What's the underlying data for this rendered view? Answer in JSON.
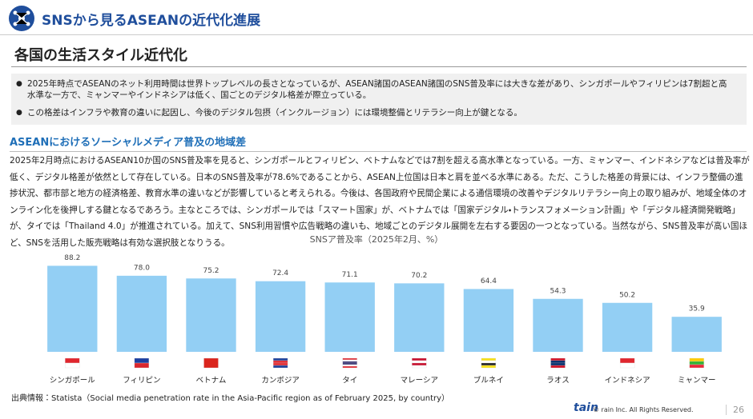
{
  "header": {
    "title": "SNSから見るASEANの近代化進展"
  },
  "section": {
    "title": "各国の生活スタイル近代化"
  },
  "bullets": [
    "2025年時点でASEANのネット利用時間は世界トップレベルの長さとなっているが、ASEAN諸国のASEAN諸国のSNS普及率には大きな差があり、シンガポールやフィリピンは7割超と高水準な一方で、ミャンマーやインドネシアは低く、国ごとのデジタル格差が際立っている。",
    "この格差はインフラや教育の違いに起因し、今後のデジタル包摂（インクルージョン）には環境整備とリテラシー向上が鍵となる。"
  ],
  "subheading": "ASEANにおけるソーシャルメディア普及の地域差",
  "paragraph": "2025年2月時点におけるASEAN10か国のSNS普及率を見ると、シンガポールとフィリピン、ベトナムなどでは7割を超える高水準となっている。一方、ミャンマー、インドネシアなどは普及率が低く、デジタル格差が依然として存在している。日本のSNS普及率が78.6%であることから、ASEAN上位国は日本と肩を並べる水準にある。ただ、こうした格差の背景には、インフラ整備の進捗状況、都市部と地方の経済格差、教育水準の違いなどが影響していると考えられる。今後は、各国政府や民間企業による通信環境の改善やデジタルリテラシー向上の取り組みが、地域全体のオンライン化を後押しする鍵となるであろう。主なところでは、シンガポールでは「スマート国家」が、ベトナムでは「国家デジタル・トランスフォメーション計画」や「デジタル経済開発戦略」が、タイでは「Thailand 4.0」が推進されている。加えて、SNS利用習慣や広告戦略の違いも、地域ごとのデジタル展開を左右する要因の一つとなっている。当然ながら、SNS普及率が高い国ほど、SNSを活用した販売戦略は有効な選択肢となりうる。",
  "chart_data": {
    "type": "bar",
    "title": "SNSア普及率（2025年2月、%）",
    "categories": [
      "シンガポール",
      "フィリピン",
      "ベトナム",
      "カンボジア",
      "タイ",
      "マレーシア",
      "ブルネイ",
      "ラオス",
      "インドネシア",
      "ミャンマー"
    ],
    "values": [
      88.2,
      78.0,
      75.2,
      72.4,
      71.1,
      70.2,
      64.4,
      54.3,
      50.2,
      35.9
    ],
    "value_labels": [
      "88.2",
      "78.0",
      "75.2",
      "72.4",
      "71.1",
      "70.2",
      "64.4",
      "54.3",
      "50.2",
      "35.9"
    ],
    "color": "#93cff4"
  },
  "source": "出典情報：Statista（Social media penetration rate in the Asia-Pacific region as of February 2025, by country）",
  "footer": {
    "logo": "tain",
    "copyright": "© rain Inc. All Rights Reserved.",
    "page": "26"
  }
}
